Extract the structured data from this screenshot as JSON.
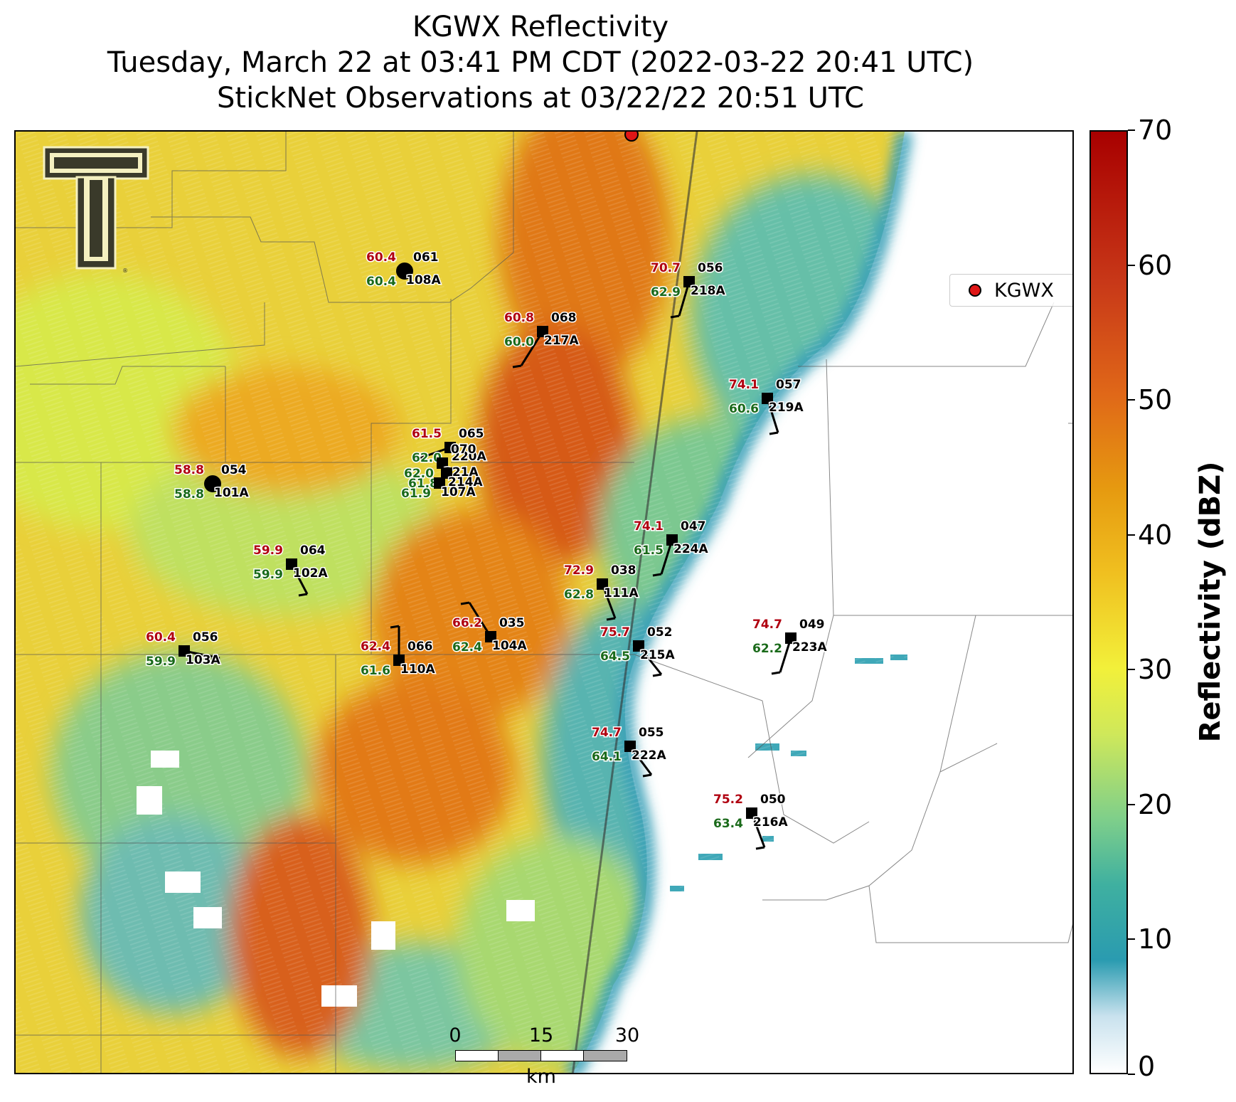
{
  "title": {
    "line1": "KGWX Reflectivity",
    "line2": "Tuesday, March 22 at 03:41 PM CDT (2022-03-22 20:41 UTC)",
    "line3": "StickNet Observations at 03/22/22 20:51 UTC"
  },
  "legend": {
    "label": "KGWX",
    "marker_color": "#e01616"
  },
  "colorbar": {
    "label": "Reflectivity (dBZ)",
    "ticks": [
      "0",
      "10",
      "20",
      "30",
      "40",
      "50",
      "60",
      "70"
    ],
    "min": 0,
    "max": 70
  },
  "scalebar": {
    "labels": [
      "0",
      "15",
      "30"
    ],
    "unit": "km"
  },
  "logo": {
    "text": "T",
    "registered": "®"
  },
  "colors": {
    "temperature": "#b00010",
    "dewpoint": "#1a6a1a",
    "station_id": "#000000",
    "radar_marker": "#e01616"
  },
  "stations": [
    {
      "id": "108A",
      "temp": "60.4",
      "dew": "60.4",
      "pres": "061",
      "marker": "circle"
    },
    {
      "id": "218A",
      "temp": "70.7",
      "dew": "62.9",
      "pres": "056",
      "marker": "square"
    },
    {
      "id": "217A",
      "temp": "60.8",
      "dew": "60.0",
      "pres": "068",
      "marker": "square"
    },
    {
      "id": "219A",
      "temp": "74.1",
      "dew": "60.6",
      "pres": "057",
      "marker": "square"
    },
    {
      "id": "101A",
      "temp": "58.8",
      "dew": "58.8",
      "pres": "054",
      "marker": "circle"
    },
    {
      "id": "220A",
      "temp": "61.5",
      "dew": "62.0",
      "pres": "065",
      "marker": "square"
    },
    {
      "id": "224A",
      "temp": "74.1",
      "dew": "61.5",
      "pres": "047",
      "marker": "square"
    },
    {
      "id": "102A",
      "temp": "59.9",
      "dew": "59.9",
      "pres": "064",
      "marker": "square"
    },
    {
      "id": "111A",
      "temp": "72.9",
      "dew": "62.8",
      "pres": "038",
      "marker": "square"
    },
    {
      "id": "104A",
      "temp": "66.2",
      "dew": "62.4",
      "pres": "035",
      "marker": "square"
    },
    {
      "id": "215A",
      "temp": "75.7",
      "dew": "64.5",
      "pres": "052",
      "marker": "square"
    },
    {
      "id": "223A",
      "temp": "74.7",
      "dew": "62.2",
      "pres": "049",
      "marker": "square"
    },
    {
      "id": "103A",
      "temp": "60.4",
      "dew": "59.9",
      "pres": "056",
      "marker": "square"
    },
    {
      "id": "110A",
      "temp": "62.4",
      "dew": "61.6",
      "pres": "066",
      "marker": "square"
    },
    {
      "id": "222A",
      "temp": "74.7",
      "dew": "64.1",
      "pres": "055",
      "marker": "square"
    },
    {
      "id": "216A",
      "temp": "75.2",
      "dew": "63.4",
      "pres": "050",
      "marker": "square"
    },
    {
      "id": "221A",
      "temp": "",
      "dew": "62.0",
      "pres": "070",
      "marker": "square"
    },
    {
      "id": "214A",
      "temp": "",
      "dew": "61.8",
      "pres": "",
      "marker": "square"
    },
    {
      "id": "107A",
      "temp": "",
      "dew": "61.9",
      "pres": "",
      "marker": "square"
    }
  ]
}
